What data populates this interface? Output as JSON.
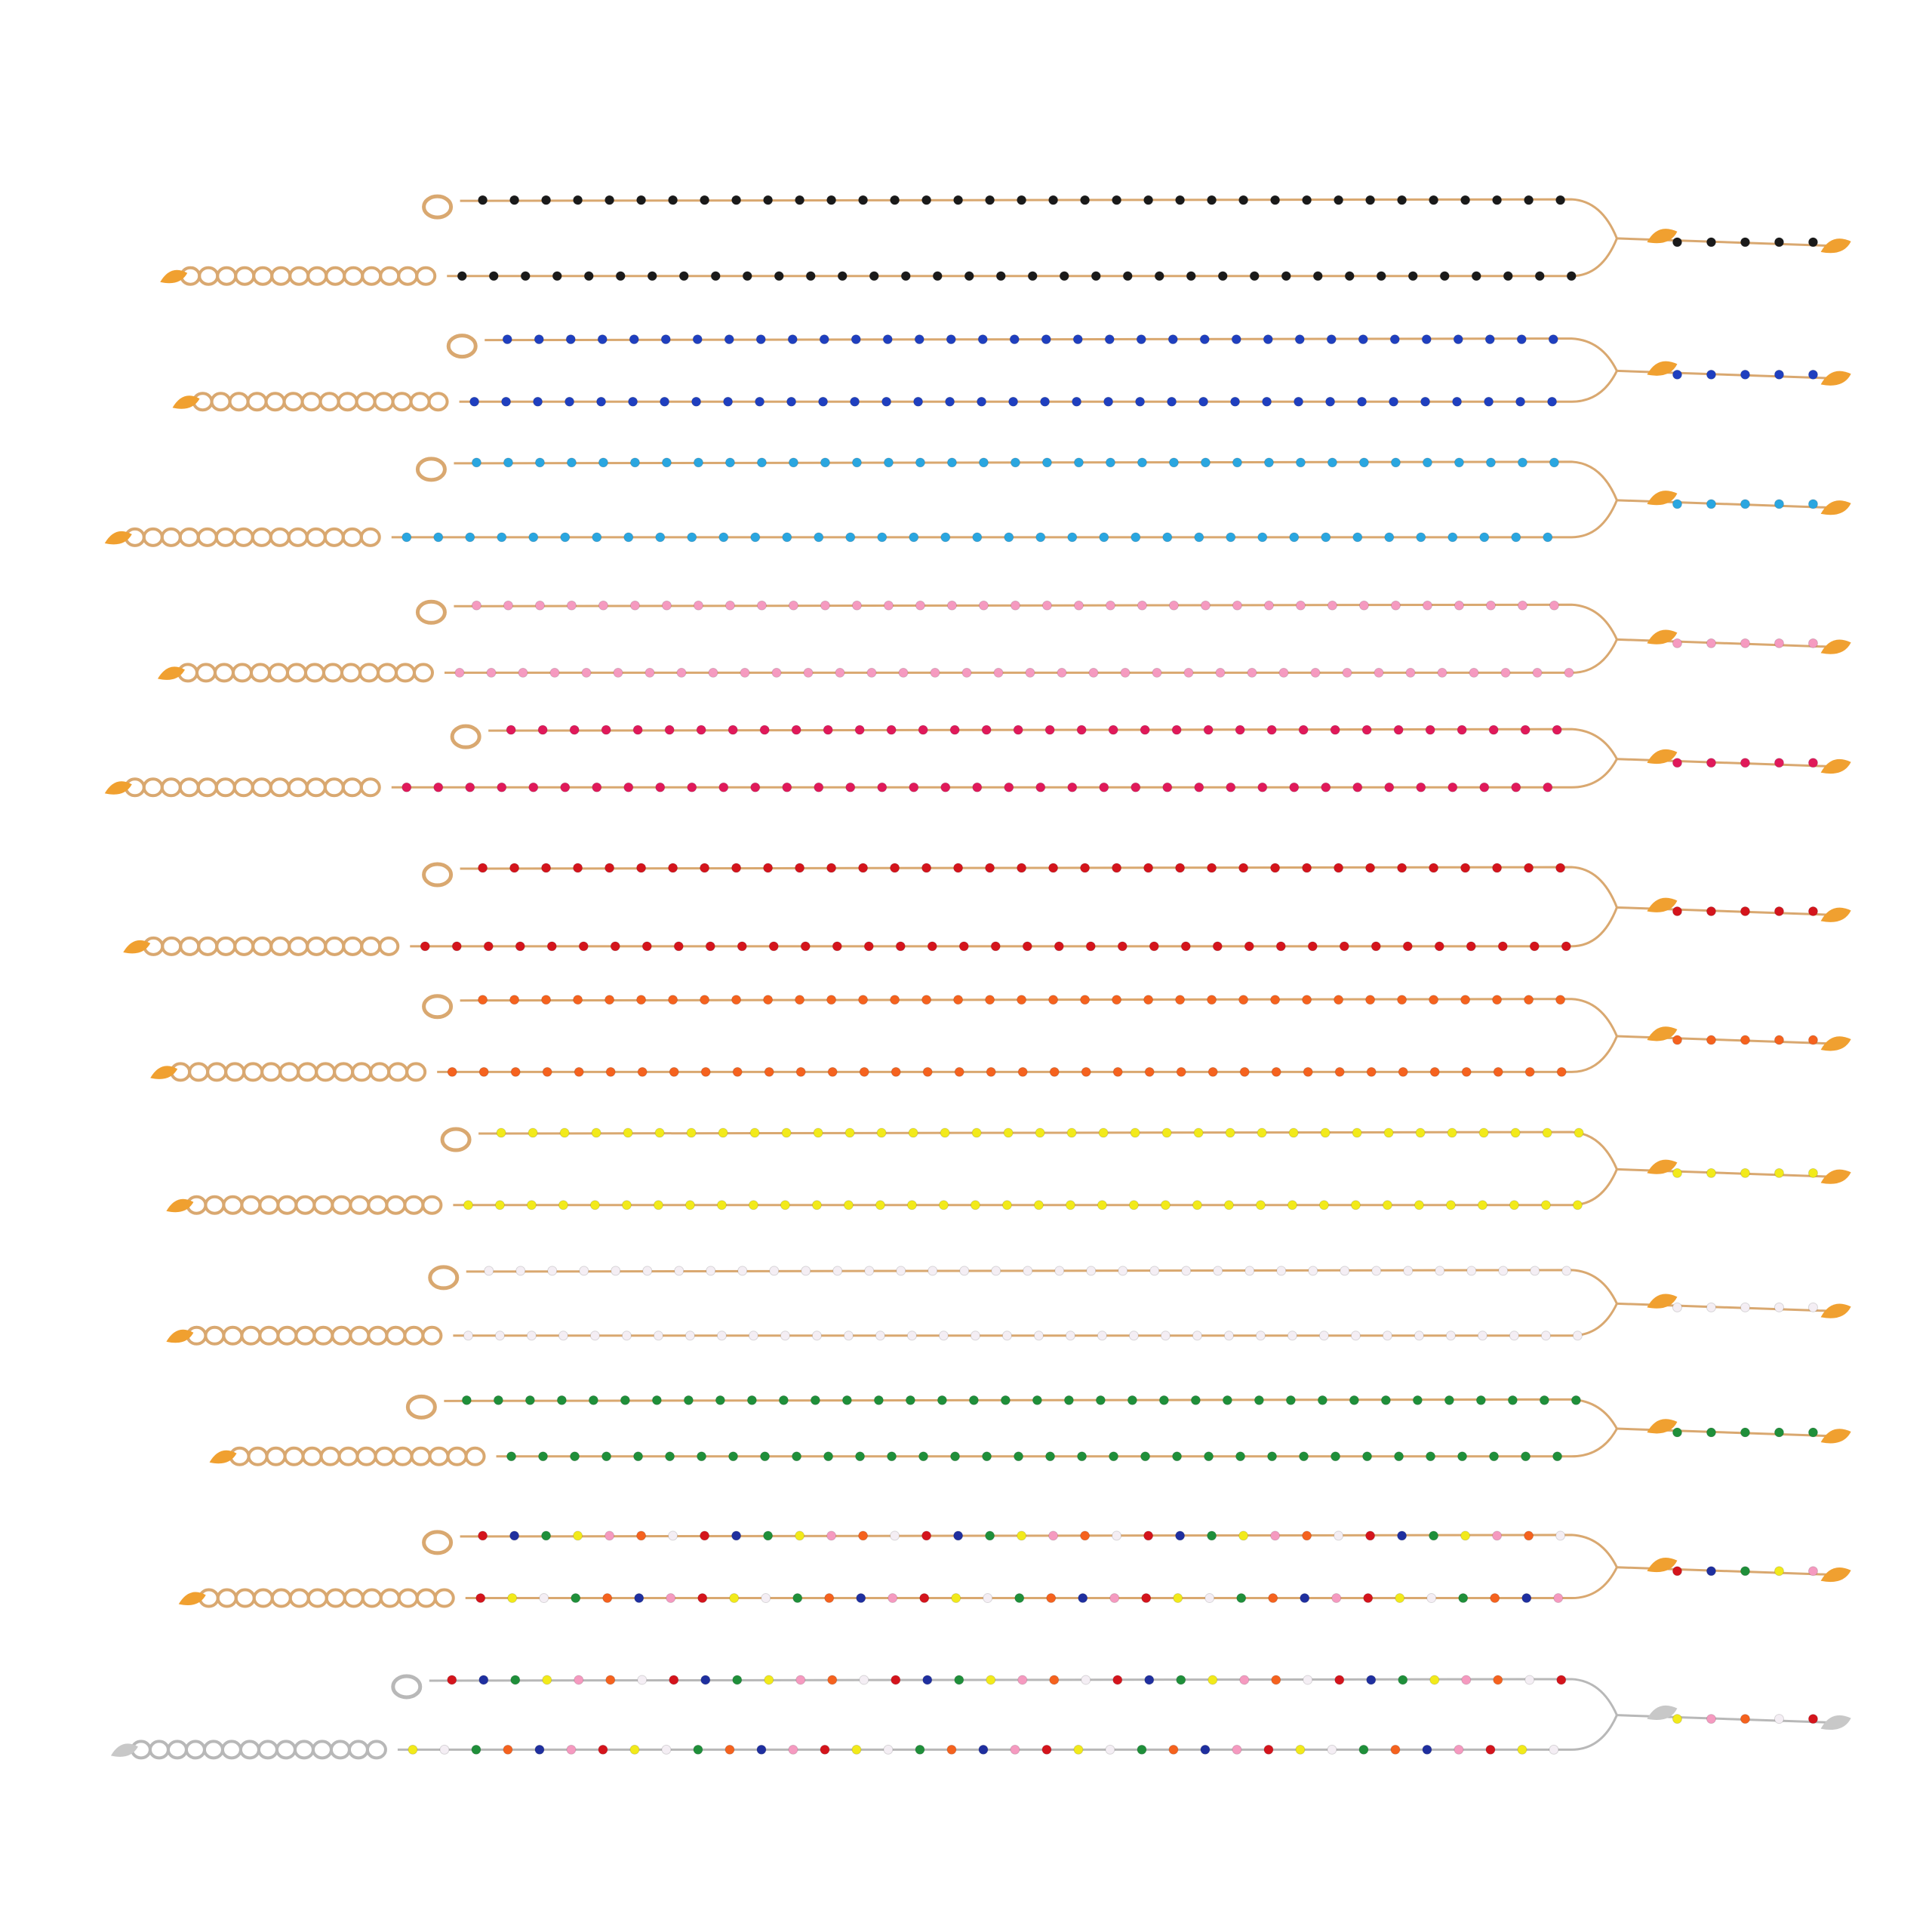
{
  "photo": {
    "background": "#ffffff",
    "necklaces": [
      {
        "bead_colors": [
          "#1a1a1a"
        ],
        "metal": "gold"
      },
      {
        "bead_colors": [
          "#1f3fbf"
        ],
        "metal": "gold"
      },
      {
        "bead_colors": [
          "#2aa6e0"
        ],
        "metal": "gold"
      },
      {
        "bead_colors": [
          "#f59ac0"
        ],
        "metal": "gold"
      },
      {
        "bead_colors": [
          "#e0195a"
        ],
        "metal": "gold"
      },
      {
        "bead_colors": [
          "#d4141c"
        ],
        "metal": "gold"
      },
      {
        "bead_colors": [
          "#f5621e"
        ],
        "metal": "gold"
      },
      {
        "bead_colors": [
          "#f2ea1a"
        ],
        "metal": "gold"
      },
      {
        "bead_colors": [
          "#f4eef4"
        ],
        "metal": "gold"
      },
      {
        "bead_colors": [
          "#1f8f3a"
        ],
        "metal": "gold"
      },
      {
        "bead_colors": [
          "#d4141c",
          "#1f2f9f",
          "#1f8f3a",
          "#f2ea1a",
          "#f59ac0",
          "#f5621e",
          "#f4eef4"
        ],
        "metal": "gold"
      },
      {
        "bead_colors": [
          "#d4141c",
          "#1f2f9f",
          "#1f8f3a",
          "#f2ea1a",
          "#f59ac0",
          "#f5621e",
          "#f4eef4"
        ],
        "metal": "silver"
      }
    ],
    "metal_colors": {
      "gold": "#d9a870",
      "silver": "#b8b8b8"
    },
    "charm_colors": {
      "gold": "#f0a030",
      "silver": "#c8c8c8"
    }
  }
}
